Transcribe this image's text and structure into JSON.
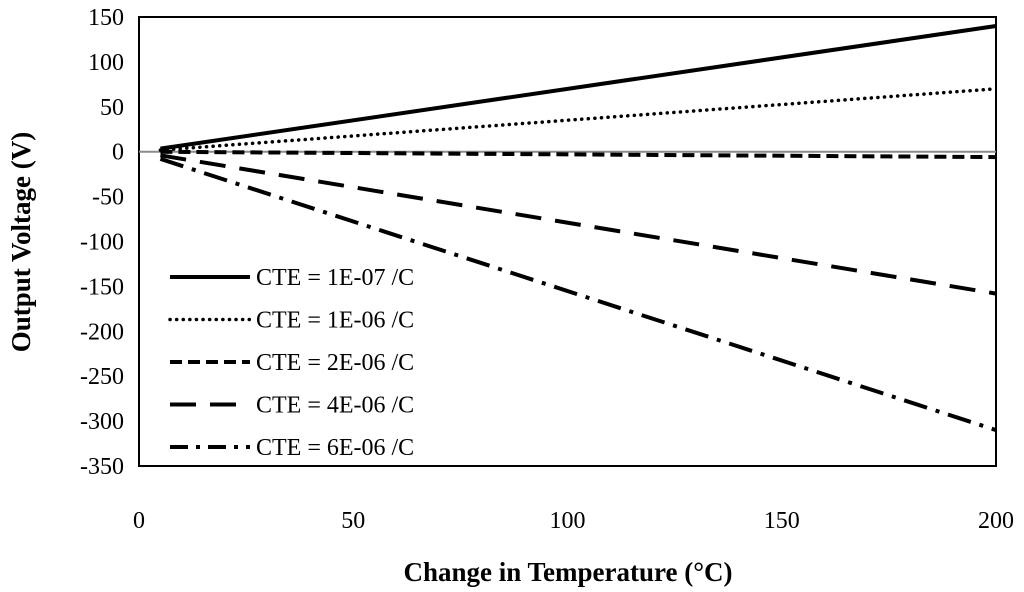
{
  "chart_data": {
    "type": "line",
    "title": "",
    "xlabel": "Change in Temperature (°C)",
    "ylabel": "Output Voltage (V)",
    "xlim": [
      0,
      200
    ],
    "ylim": [
      -350,
      150
    ],
    "xticks": [
      0,
      50,
      100,
      150,
      200
    ],
    "yticks": [
      150,
      100,
      50,
      0,
      -50,
      -100,
      -150,
      -200,
      -250,
      -300,
      -350
    ],
    "grid": false,
    "legend_position": "bottom-left",
    "x": [
      5,
      200
    ],
    "series": [
      {
        "name": "CTE = 1E-07 /C",
        "style": "solid",
        "values": [
          3.5,
          140
        ]
      },
      {
        "name": "CTE = 1E-06 /C",
        "style": "dotted",
        "values": [
          1.8,
          70
        ]
      },
      {
        "name": "CTE = 2E-06 /C",
        "style": "dashed",
        "values": [
          -0.15,
          -6
        ]
      },
      {
        "name": "CTE = 4E-06 /C",
        "style": "longdash",
        "values": [
          -4,
          -158
        ]
      },
      {
        "name": "CTE = 6E-06 /C",
        "style": "dashdot",
        "values": [
          -8,
          -310
        ]
      }
    ]
  }
}
